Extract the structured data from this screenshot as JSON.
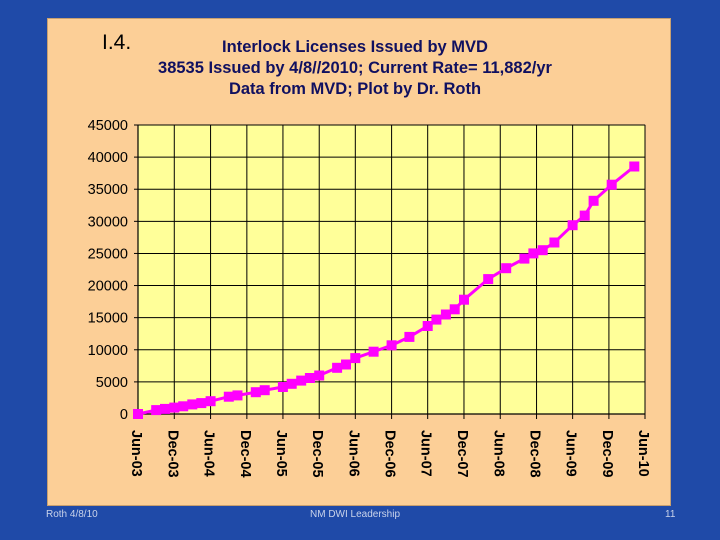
{
  "slide": {
    "label": "I.4.",
    "footer_left": "Roth 4/8/10",
    "footer_center": "NM DWI Leadership",
    "footer_right": "11"
  },
  "chart_data": {
    "type": "line",
    "title": "Interlock Licenses Issued by MVD",
    "subtitle_lines": [
      "38535 Issued by 4/8//2010;   Current Rate= 11,882/yr",
      "Data from MVD; Plot by Dr. Roth"
    ],
    "xlabel": "",
    "ylabel": "",
    "ylim": [
      0,
      45000
    ],
    "yticks": [
      0,
      5000,
      10000,
      15000,
      20000,
      25000,
      30000,
      35000,
      40000,
      45000
    ],
    "xticks": [
      "Jun-03",
      "Dec-03",
      "Jun-04",
      "Dec-04",
      "Jun-05",
      "Dec-05",
      "Jun-06",
      "Dec-06",
      "Jun-07",
      "Dec-07",
      "Jun-08",
      "Dec-08",
      "Jun-09",
      "Dec-09",
      "Jun-10"
    ],
    "grid": true,
    "colors": {
      "plot_bg": "#ffff99",
      "series": "#ff00ff",
      "frame_bg": "#fccf97",
      "slide_bg": "#1f4aa8"
    },
    "series": [
      {
        "x": [
          "2003-06-01",
          "2003-09-01",
          "2003-10-15",
          "2003-12-01",
          "2004-01-15",
          "2004-03-01",
          "2004-04-15",
          "2004-06-01",
          "2004-09-01",
          "2004-10-15",
          "2005-01-15",
          "2005-03-01",
          "2005-06-01",
          "2005-07-15",
          "2005-09-01",
          "2005-10-15",
          "2005-12-01",
          "2006-03-01",
          "2006-04-15",
          "2006-06-01",
          "2006-09-01",
          "2006-12-01",
          "2007-03-01",
          "2007-06-01",
          "2007-07-15",
          "2007-09-01",
          "2007-10-15",
          "2007-12-01",
          "2008-04-01",
          "2008-07-01",
          "2008-10-01",
          "2008-11-15",
          "2009-01-01",
          "2009-03-01",
          "2009-06-01",
          "2009-08-01",
          "2009-09-15",
          "2009-12-15",
          "2010-04-08"
        ],
        "values": [
          0,
          600,
          800,
          1000,
          1200,
          1500,
          1700,
          2000,
          2700,
          2900,
          3400,
          3700,
          4200,
          4700,
          5200,
          5600,
          6000,
          7200,
          7700,
          8700,
          9700,
          10700,
          12000,
          13700,
          14700,
          15500,
          16300,
          17800,
          21000,
          22700,
          24200,
          25000,
          25500,
          26700,
          29400,
          30900,
          33200,
          35700,
          38535
        ]
      }
    ]
  }
}
